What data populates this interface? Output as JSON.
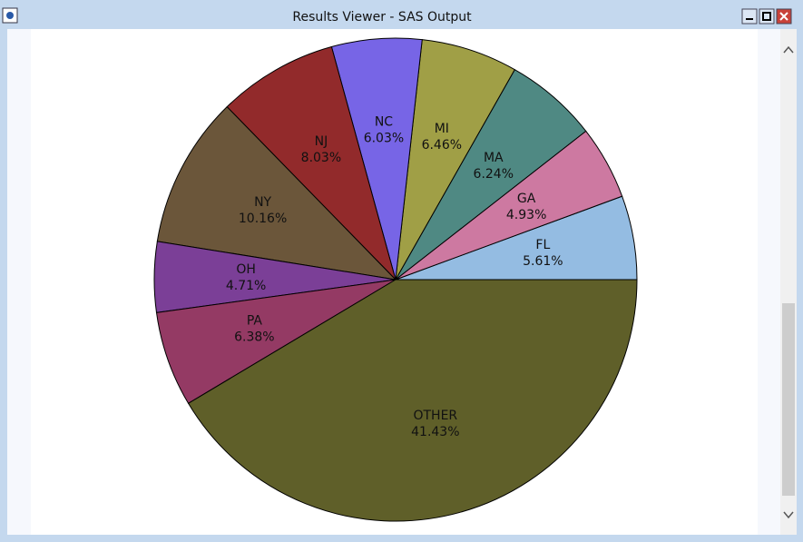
{
  "window": {
    "title": "Results Viewer - SAS Output"
  },
  "chart_data": {
    "type": "pie",
    "categories": [
      "FL",
      "GA",
      "MA",
      "MI",
      "NC",
      "NJ",
      "NY",
      "OH",
      "PA",
      "OTHER"
    ],
    "values": [
      5.61,
      4.93,
      6.24,
      6.46,
      6.03,
      8.03,
      10.16,
      4.71,
      6.38,
      41.43
    ],
    "value_labels": [
      "5.61%",
      "4.93%",
      "6.24%",
      "6.46%",
      "6.03%",
      "8.03%",
      "10.16%",
      "4.71%",
      "6.38%",
      "41.43%"
    ],
    "colors": [
      "#94bce2",
      "#cd79a1",
      "#4f8983",
      "#a09f46",
      "#7765e6",
      "#922a2b",
      "#6b563a",
      "#7b3f97",
      "#943a64",
      "#5f5f29"
    ]
  }
}
